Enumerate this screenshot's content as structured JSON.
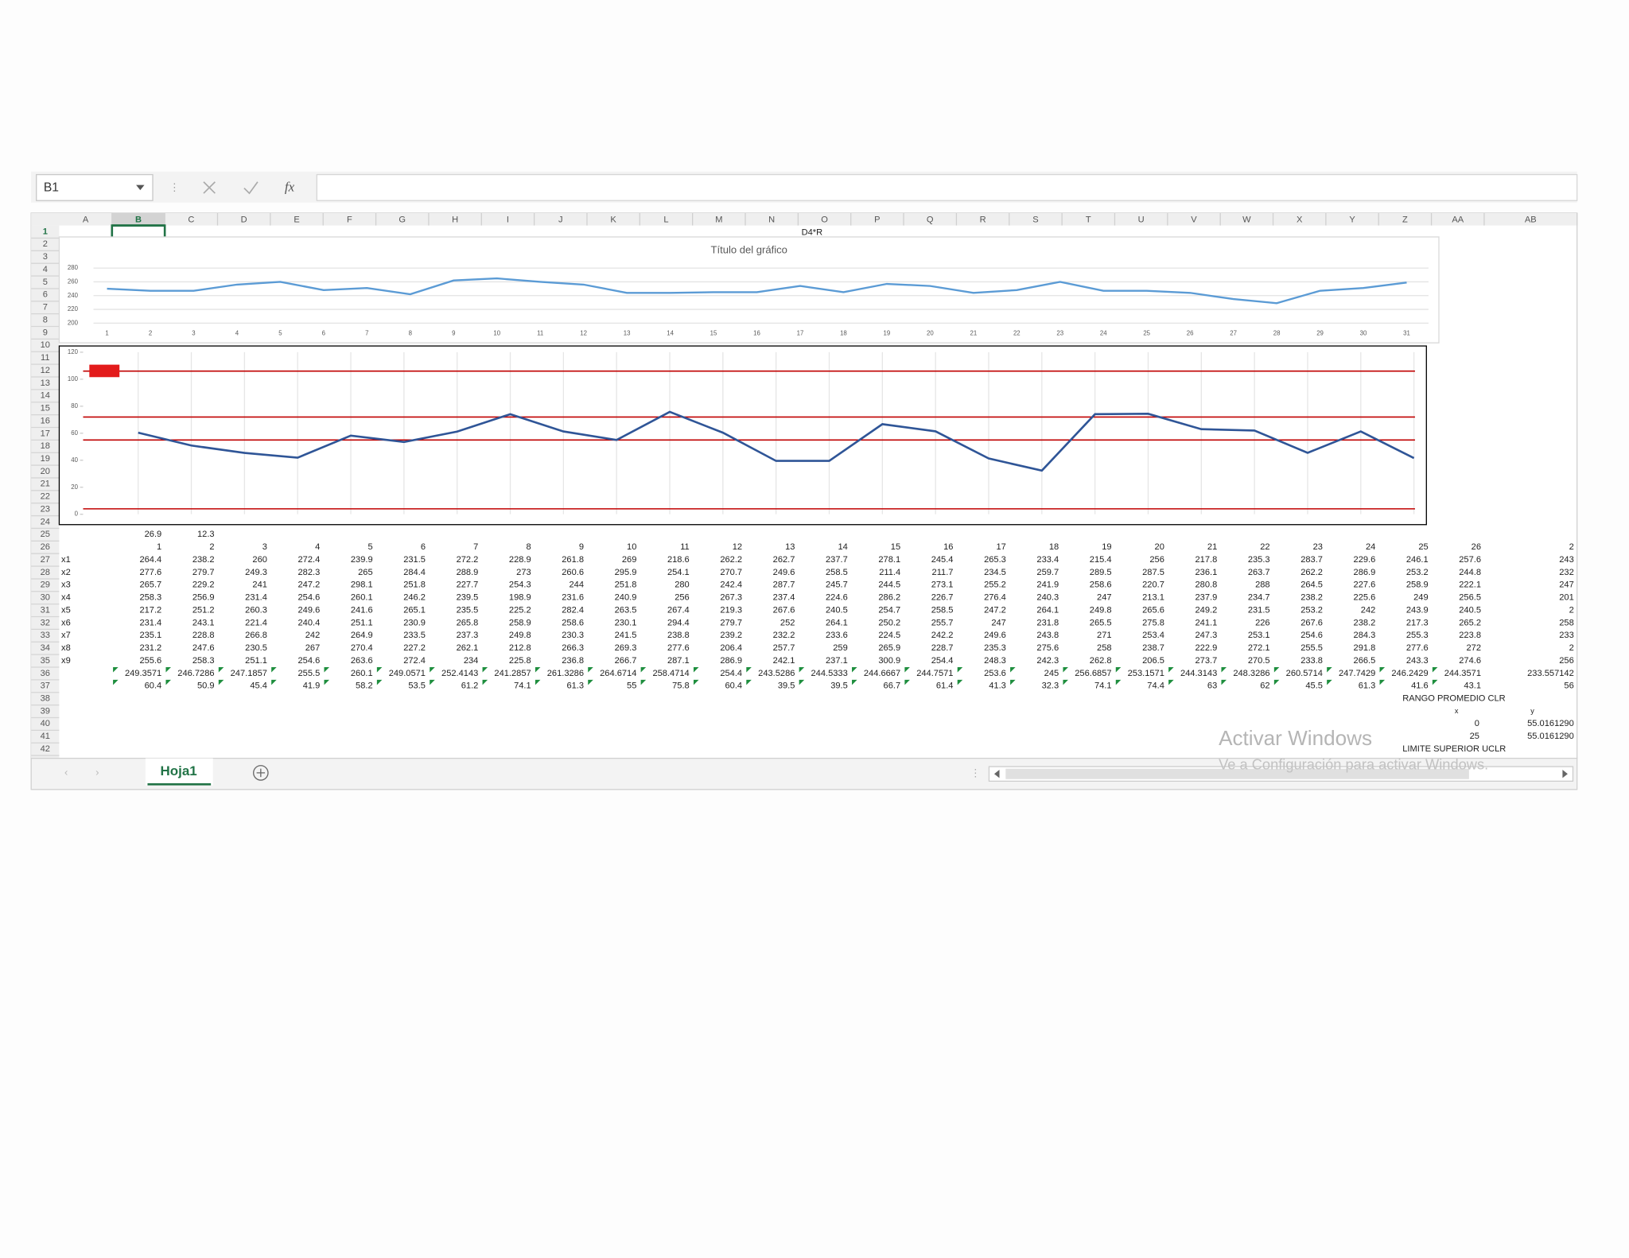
{
  "formula_bar": {
    "name_box": "B1",
    "fx": "fx"
  },
  "column_headers": [
    "A",
    "B",
    "C",
    "D",
    "E",
    "F",
    "G",
    "H",
    "I",
    "J",
    "K",
    "L",
    "M",
    "N",
    "O",
    "P",
    "Q",
    "R",
    "S",
    "T",
    "U",
    "V",
    "W",
    "X",
    "Y",
    "Z",
    "AA",
    "AB"
  ],
  "row_numbers": [
    1,
    2,
    3,
    4,
    5,
    6,
    7,
    8,
    9,
    10,
    11,
    12,
    13,
    14,
    15,
    16,
    17,
    18,
    19,
    20,
    21,
    22,
    23,
    24,
    25,
    26,
    27,
    28,
    29,
    30,
    31,
    32,
    33,
    34,
    35,
    36,
    37,
    38,
    39,
    40,
    41,
    42
  ],
  "cell_O1": "D4*R",
  "chart_data": [
    {
      "type": "line",
      "title": "Título del gráfico",
      "color": "#5b9bd5",
      "categories": [
        1,
        2,
        3,
        4,
        5,
        6,
        7,
        8,
        9,
        10,
        11,
        12,
        13,
        14,
        15,
        16,
        17,
        18,
        19,
        20,
        21,
        22,
        23,
        24,
        25,
        26,
        27,
        28,
        29,
        30,
        31
      ],
      "values": [
        250,
        247,
        247,
        256,
        260,
        248,
        251,
        242,
        262,
        265,
        260,
        256,
        244,
        244,
        245,
        245,
        254,
        245,
        257,
        254,
        244,
        248,
        260,
        247,
        247,
        244,
        235,
        229,
        247,
        251,
        259
      ],
      "ylim": [
        200,
        280
      ],
      "yticks": [
        200,
        220,
        240,
        260,
        280
      ],
      "grid": true
    },
    {
      "type": "line",
      "color": "#2f5597",
      "values": [
        60.4,
        50.9,
        45.4,
        41.9,
        58.2,
        53.5,
        61.2,
        74.1,
        61.3,
        55,
        75.8,
        60.4,
        39.5,
        39.5,
        66.7,
        61.4,
        41.3,
        32.3,
        74.1,
        74.4,
        63,
        62,
        45.5,
        61.3,
        41.6
      ],
      "ylim": [
        0,
        120
      ],
      "yticks": [
        0,
        20,
        40,
        60,
        80,
        100,
        120
      ],
      "reference_lines": [
        {
          "value": 106,
          "color": "#c00000"
        },
        {
          "value": 72,
          "color": "#c00000"
        },
        {
          "value": 55,
          "color": "#c00000"
        },
        {
          "value": 4,
          "color": "#c00000"
        }
      ]
    }
  ],
  "table": {
    "row25": [
      "26.9",
      "12.3"
    ],
    "header_row": [
      1,
      2,
      3,
      4,
      5,
      6,
      7,
      8,
      9,
      10,
      11,
      12,
      13,
      14,
      15,
      16,
      17,
      18,
      19,
      20,
      21,
      22,
      23,
      24,
      25,
      26,
      "2"
    ],
    "rows": [
      {
        "label": "x1",
        "values": [
          264.4,
          238.2,
          260,
          272.4,
          239.9,
          231.5,
          272.2,
          228.9,
          261.8,
          269,
          218.6,
          262.2,
          262.7,
          237.7,
          278.1,
          245.4,
          265.3,
          233.4,
          215.4,
          256,
          217.8,
          235.3,
          283.7,
          229.6,
          246.1,
          257.6,
          "243"
        ]
      },
      {
        "label": "x2",
        "values": [
          277.6,
          279.7,
          249.3,
          282.3,
          265,
          284.4,
          288.9,
          273,
          260.6,
          295.9,
          254.1,
          270.7,
          249.6,
          258.5,
          211.4,
          211.7,
          234.5,
          259.7,
          289.5,
          287.5,
          236.1,
          263.7,
          262.2,
          286.9,
          253.2,
          244.8,
          "232"
        ]
      },
      {
        "label": "x3",
        "values": [
          265.7,
          229.2,
          241,
          247.2,
          298.1,
          251.8,
          227.7,
          254.3,
          244,
          251.8,
          280,
          242.4,
          287.7,
          245.7,
          244.5,
          273.1,
          255.2,
          241.9,
          258.6,
          220.7,
          280.8,
          288,
          264.5,
          227.6,
          258.9,
          222.1,
          "247"
        ]
      },
      {
        "label": "x4",
        "values": [
          258.3,
          256.9,
          231.4,
          254.6,
          260.1,
          246.2,
          239.5,
          198.9,
          231.6,
          240.9,
          256,
          267.3,
          237.4,
          224.6,
          286.2,
          226.7,
          276.4,
          240.3,
          247,
          213.1,
          237.9,
          234.7,
          238.2,
          225.6,
          249,
          256.5,
          "201"
        ]
      },
      {
        "label": "x5",
        "values": [
          217.2,
          251.2,
          260.3,
          249.6,
          241.6,
          265.1,
          235.5,
          225.2,
          282.4,
          263.5,
          267.4,
          219.3,
          267.6,
          240.5,
          254.7,
          258.5,
          247.2,
          264.1,
          249.8,
          265.6,
          249.2,
          231.5,
          253.2,
          242,
          243.9,
          240.5,
          "2"
        ]
      },
      {
        "label": "x6",
        "values": [
          231.4,
          243.1,
          221.4,
          240.4,
          251.1,
          230.9,
          265.8,
          258.9,
          258.6,
          230.1,
          294.4,
          279.7,
          252,
          264.1,
          250.2,
          255.7,
          247,
          231.8,
          265.5,
          275.8,
          241.1,
          226,
          267.6,
          238.2,
          217.3,
          265.2,
          "258"
        ]
      },
      {
        "label": "x7",
        "values": [
          235.1,
          228.8,
          266.8,
          242,
          264.9,
          233.5,
          237.3,
          249.8,
          230.3,
          241.5,
          238.8,
          239.2,
          232.2,
          233.6,
          224.5,
          242.2,
          249.6,
          243.8,
          271,
          253.4,
          247.3,
          253.1,
          254.6,
          284.3,
          255.3,
          223.8,
          "233"
        ]
      },
      {
        "label": "x8",
        "values": [
          231.2,
          247.6,
          230.5,
          267,
          270.4,
          227.2,
          262.1,
          212.8,
          266.3,
          269.3,
          277.6,
          206.4,
          257.7,
          259,
          265.9,
          228.7,
          235.3,
          275.6,
          258,
          238.7,
          222.9,
          272.1,
          255.5,
          291.8,
          277.6,
          272,
          "2"
        ]
      },
      {
        "label": "x9",
        "values": [
          255.6,
          258.3,
          251.1,
          254.6,
          263.6,
          272.4,
          234,
          225.8,
          236.8,
          266.7,
          287.1,
          286.9,
          242.1,
          237.1,
          300.9,
          254.4,
          248.3,
          242.3,
          262.8,
          206.5,
          273.7,
          270.5,
          233.8,
          266.5,
          243.3,
          274.6,
          "256"
        ]
      }
    ],
    "mean_row": [
      249.3571,
      246.7286,
      247.1857,
      255.5,
      260.1,
      249.0571,
      252.4143,
      241.2857,
      261.3286,
      264.6714,
      258.4714,
      254.4,
      243.5286,
      244.5333,
      244.6667,
      244.7571,
      253.6,
      245,
      256.6857,
      253.1571,
      244.3143,
      248.3286,
      260.5714,
      247.7429,
      246.2429,
      244.3571,
      "233.557142"
    ],
    "range_row": [
      60.4,
      50.9,
      45.4,
      41.9,
      58.2,
      53.5,
      61.2,
      74.1,
      61.3,
      55,
      75.8,
      60.4,
      39.5,
      39.5,
      66.7,
      61.4,
      41.3,
      32.3,
      74.1,
      74.4,
      63,
      62,
      45.5,
      61.3,
      41.6,
      43.1,
      "56"
    ],
    "clr_label": "RANGO PROMEDIO CLR",
    "xy_header": [
      "x",
      "y"
    ],
    "xy_rows": [
      [
        0,
        "55.0161290"
      ],
      [
        25,
        "55.0161290"
      ]
    ],
    "uclr_label": "LIMITE SUPERIOR UCLR"
  },
  "sheet_tab": "Hoja1",
  "watermark": {
    "title": "Activar Windows",
    "subtitle": "Ve a Configuración para activar Windows."
  }
}
